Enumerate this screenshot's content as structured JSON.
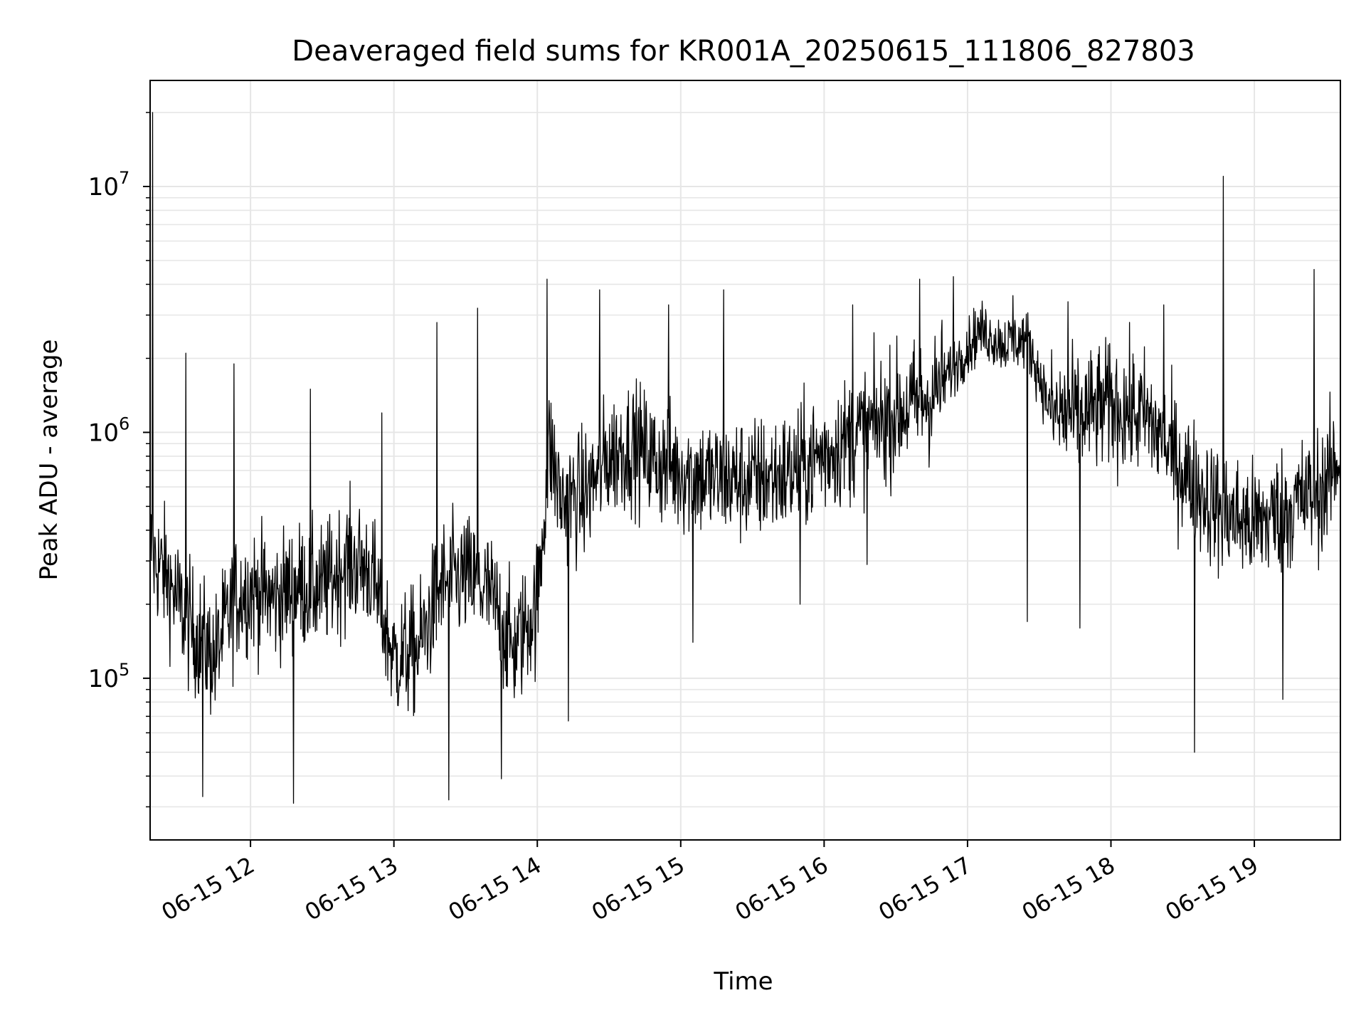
{
  "chart_data": {
    "type": "line",
    "title": "Deaveraged field sums for KR001A_20250615_111806_827803",
    "xlabel": "Time",
    "ylabel": "Peak ADU - average",
    "yscale": "log",
    "grid": true,
    "legend": "none",
    "xlim": [
      "2025-06-15 11:18",
      "2025-06-15 19:36"
    ],
    "ylim": [
      22000,
      27000000
    ],
    "xticks": [
      "2025-06-15 12:00",
      "2025-06-15 13:00",
      "2025-06-15 14:00",
      "2025-06-15 15:00",
      "2025-06-15 16:00",
      "2025-06-15 17:00",
      "2025-06-15 18:00",
      "2025-06-15 19:00"
    ],
    "xtick_labels": [
      "06-15 12",
      "06-15 13",
      "06-15 14",
      "06-15 15",
      "06-15 16",
      "06-15 17",
      "06-15 18",
      "06-15 19"
    ],
    "yticks": [
      100000,
      1000000,
      10000000
    ],
    "ytick_labels": [
      {
        "base": "10",
        "exp": "5"
      },
      {
        "base": "10",
        "exp": "6"
      },
      {
        "base": "10",
        "exp": "7"
      }
    ],
    "line_color": "#000000",
    "grid_color": "#e6e6e6",
    "series": [
      {
        "x": [
          "2025-06-15 11:18",
          "2025-06-15 11:20",
          "2025-06-15 11:25",
          "2025-06-15 11:30",
          "2025-06-15 11:35",
          "2025-06-15 11:40",
          "2025-06-15 11:45",
          "2025-06-15 11:50",
          "2025-06-15 11:55",
          "2025-06-15 12:00",
          "2025-06-15 12:10",
          "2025-06-15 12:20",
          "2025-06-15 12:30",
          "2025-06-15 12:40",
          "2025-06-15 12:50",
          "2025-06-15 13:00",
          "2025-06-15 13:10",
          "2025-06-15 13:20",
          "2025-06-15 13:30",
          "2025-06-15 13:40",
          "2025-06-15 13:50",
          "2025-06-15 14:00",
          "2025-06-15 14:05",
          "2025-06-15 14:10",
          "2025-06-15 14:20",
          "2025-06-15 14:30",
          "2025-06-15 14:40",
          "2025-06-15 14:50",
          "2025-06-15 15:00",
          "2025-06-15 15:15",
          "2025-06-15 15:30",
          "2025-06-15 15:45",
          "2025-06-15 16:00",
          "2025-06-15 16:15",
          "2025-06-15 16:30",
          "2025-06-15 16:45",
          "2025-06-15 16:55",
          "2025-06-15 17:05",
          "2025-06-15 17:15",
          "2025-06-15 17:25",
          "2025-06-15 17:35",
          "2025-06-15 17:45",
          "2025-06-15 18:00",
          "2025-06-15 18:15",
          "2025-06-15 18:30",
          "2025-06-15 18:45",
          "2025-06-15 19:00",
          "2025-06-15 19:15",
          "2025-06-15 19:30",
          "2025-06-15 19:36"
        ],
        "y": [
          350000,
          300000,
          260000,
          200000,
          160000,
          140000,
          120000,
          170000,
          220000,
          230000,
          210000,
          240000,
          230000,
          300000,
          280000,
          120000,
          130000,
          240000,
          260000,
          220000,
          130000,
          200000,
          900000,
          520000,
          560000,
          800000,
          900000,
          760000,
          700000,
          640000,
          640000,
          680000,
          820000,
          1000000,
          1200000,
          1400000,
          1900000,
          2600000,
          2300000,
          2400000,
          1200000,
          1150000,
          1300000,
          1150000,
          700000,
          480000,
          420000,
          500000,
          600000,
          820000
        ]
      }
    ],
    "spikes": [
      {
        "x": "2025-06-15 11:19",
        "y": 20000000
      },
      {
        "x": "2025-06-15 11:33",
        "y": 2100000
      },
      {
        "x": "2025-06-15 11:53",
        "y": 1900000
      },
      {
        "x": "2025-06-15 12:25",
        "y": 1500000
      },
      {
        "x": "2025-06-15 12:55",
        "y": 1200000
      },
      {
        "x": "2025-06-15 13:18",
        "y": 2800000
      },
      {
        "x": "2025-06-15 13:35",
        "y": 3200000
      },
      {
        "x": "2025-06-15 14:04",
        "y": 4200000
      },
      {
        "x": "2025-06-15 14:26",
        "y": 3800000
      },
      {
        "x": "2025-06-15 14:55",
        "y": 3300000
      },
      {
        "x": "2025-06-15 15:18",
        "y": 3800000
      },
      {
        "x": "2025-06-15 16:12",
        "y": 3300000
      },
      {
        "x": "2025-06-15 16:40",
        "y": 4200000
      },
      {
        "x": "2025-06-15 16:54",
        "y": 4300000
      },
      {
        "x": "2025-06-15 17:19",
        "y": 3600000
      },
      {
        "x": "2025-06-15 17:42",
        "y": 3400000
      },
      {
        "x": "2025-06-15 18:22",
        "y": 3300000
      },
      {
        "x": "2025-06-15 18:47",
        "y": 11000000
      },
      {
        "x": "2025-06-15 19:25",
        "y": 4600000
      }
    ],
    "dips": [
      {
        "x": "2025-06-15 11:40",
        "y": 33000
      },
      {
        "x": "2025-06-15 12:18",
        "y": 31000
      },
      {
        "x": "2025-06-15 13:23",
        "y": 32000
      },
      {
        "x": "2025-06-15 13:45",
        "y": 39000
      },
      {
        "x": "2025-06-15 14:13",
        "y": 67000
      },
      {
        "x": "2025-06-15 15:05",
        "y": 140000
      },
      {
        "x": "2025-06-15 15:50",
        "y": 200000
      },
      {
        "x": "2025-06-15 16:18",
        "y": 290000
      },
      {
        "x": "2025-06-15 17:25",
        "y": 170000
      },
      {
        "x": "2025-06-15 17:47",
        "y": 160000
      },
      {
        "x": "2025-06-15 18:35",
        "y": 50000
      },
      {
        "x": "2025-06-15 19:12",
        "y": 82000
      }
    ]
  }
}
